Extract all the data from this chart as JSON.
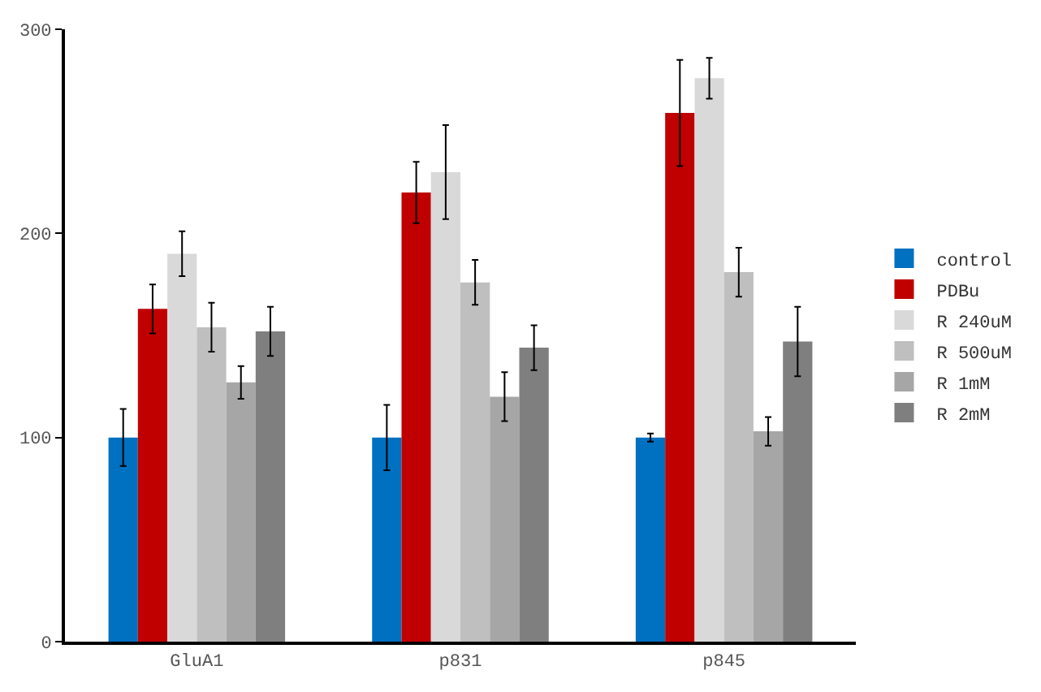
{
  "chart_data": {
    "type": "bar",
    "categories": [
      "GluA1",
      "p831",
      "p845"
    ],
    "series": [
      {
        "name": "control",
        "color": "#0070c0",
        "values": [
          100,
          100,
          100
        ],
        "errors": [
          14,
          16,
          2
        ]
      },
      {
        "name": "PDBu",
        "color": "#c00000",
        "values": [
          163,
          220,
          259
        ],
        "errors": [
          12,
          15,
          26
        ]
      },
      {
        "name": "R 240uM",
        "color": "#d9d9d9",
        "values": [
          190,
          230,
          276
        ],
        "errors": [
          11,
          23,
          10
        ]
      },
      {
        "name": "R 500uM",
        "color": "#bfbfbf",
        "values": [
          154,
          176,
          181
        ],
        "errors": [
          12,
          11,
          12
        ]
      },
      {
        "name": "R 1mM",
        "color": "#a6a6a6",
        "values": [
          127,
          120,
          103
        ],
        "errors": [
          8,
          12,
          7
        ]
      },
      {
        "name": "R 2mM",
        "color": "#7f7f7f",
        "values": [
          152,
          144,
          147
        ],
        "errors": [
          12,
          11,
          17
        ]
      }
    ],
    "ylim": [
      0,
      300
    ],
    "yticks": [
      0,
      100,
      200,
      300
    ],
    "grid": false,
    "legend": "right"
  }
}
